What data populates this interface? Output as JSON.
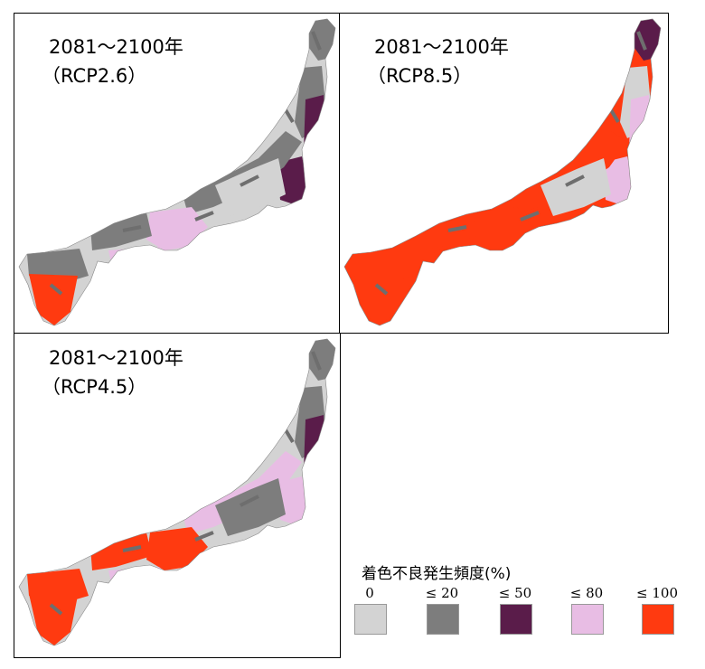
{
  "panels": [
    {
      "period": "2081～2100年",
      "scenario": "（RCP2.6）",
      "scheme": "rcp26"
    },
    {
      "period": "2081～2100年",
      "scenario": "（RCP8.5）",
      "scheme": "rcp85"
    },
    {
      "period": "2081～2100年",
      "scenario": "（RCP4.5）",
      "scheme": "rcp45"
    }
  ],
  "legend": {
    "title": "着色不良発生頻度(%)",
    "classes": [
      {
        "label": "0",
        "color": "#d3d3d3"
      },
      {
        "label": "≤ 20",
        "color": "#7d7d7d"
      },
      {
        "label": "≤ 50",
        "color": "#5a1c4a"
      },
      {
        "label": "≤ 80",
        "color": "#e8bde4"
      },
      {
        "label": "≤ 100",
        "color": "#ff3a10"
      }
    ]
  }
}
